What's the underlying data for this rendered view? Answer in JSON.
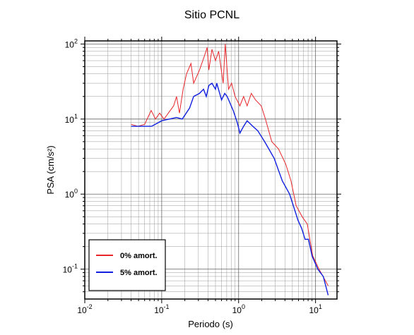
{
  "chart_data": {
    "type": "line",
    "title": "Sitio PCNL",
    "x_label": "Periodo (s)",
    "y_label": "PSA (cm/s²)",
    "log_x": true,
    "log_y": true,
    "grid": true,
    "legend": "lower left",
    "xlim": [
      0.01,
      19
    ],
    "ylim": [
      0.04,
      110
    ],
    "xticks": [
      {
        "value": 0.01,
        "label": "10",
        "exponent": "-2"
      },
      {
        "value": 0.1,
        "label": "10",
        "exponent": "-1"
      },
      {
        "value": 1,
        "label": "10",
        "exponent": "0"
      },
      {
        "value": 10,
        "label": "10",
        "exponent": "1"
      }
    ],
    "yticks": [
      {
        "value": 0.1,
        "label": "10",
        "exponent": "-1"
      },
      {
        "value": 1,
        "label": "10",
        "exponent": "0"
      },
      {
        "value": 10,
        "label": "10",
        "exponent": "1"
      },
      {
        "value": 100,
        "label": "10",
        "exponent": "2"
      }
    ],
    "series": [
      {
        "name": "0% amort.",
        "color": "#e8262a",
        "x": [
          0.04,
          0.049,
          0.06,
          0.073,
          0.083,
          0.094,
          0.107,
          0.143,
          0.156,
          0.17,
          0.19,
          0.21,
          0.24,
          0.26,
          0.31,
          0.36,
          0.39,
          0.41,
          0.45,
          0.5,
          0.55,
          0.63,
          0.67,
          0.74,
          0.81,
          0.9,
          1.04,
          1.16,
          1.29,
          1.46,
          1.66,
          1.97,
          2.23,
          2.7,
          3.3,
          4.1,
          4.8,
          5.6,
          6.7,
          7.8,
          9.2,
          11.1,
          14.6
        ],
        "values": [
          8.5,
          8,
          8.5,
          13,
          10,
          12,
          10,
          15,
          20,
          12,
          25,
          40,
          55,
          30,
          45,
          70,
          90,
          45,
          85,
          60,
          80,
          30,
          100,
          25,
          30,
          20,
          15,
          20,
          15,
          22,
          18,
          15,
          10,
          5,
          4,
          2.5,
          1.5,
          0.7,
          0.5,
          0.4,
          0.15,
          0.1,
          0.06
        ]
      },
      {
        "name": "5% amort.",
        "color": "#1020e0",
        "x": [
          0.04,
          0.074,
          0.1,
          0.156,
          0.185,
          0.23,
          0.26,
          0.31,
          0.35,
          0.38,
          0.41,
          0.45,
          0.5,
          0.52,
          0.6,
          0.66,
          0.71,
          0.85,
          0.96,
          1.04,
          1.16,
          1.29,
          1.53,
          1.77,
          2.18,
          2.9,
          3.7,
          4.6,
          5.4,
          5.9,
          6.6,
          7.3,
          8.1,
          9.0,
          10.7,
          12.6,
          14.6
        ],
        "values": [
          8,
          8,
          9.5,
          10.5,
          10,
          14,
          20,
          22,
          25,
          20,
          28,
          30,
          25,
          30,
          18,
          22,
          20,
          13,
          9,
          6.5,
          8,
          9.5,
          8,
          7,
          5,
          3,
          1.5,
          1,
          0.6,
          0.45,
          0.35,
          0.25,
          0.25,
          0.15,
          0.1,
          0.08,
          0.045
        ]
      }
    ]
  }
}
